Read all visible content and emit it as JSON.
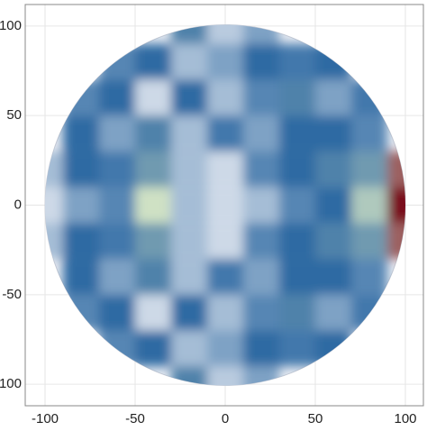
{
  "chart_data": {
    "type": "field",
    "x": [
      -100,
      -80,
      -60,
      -40,
      -20,
      0,
      20,
      40,
      60,
      80,
      100
    ],
    "y": [
      100,
      80,
      60,
      40,
      20,
      0,
      -20,
      -40,
      -60,
      -80,
      -100
    ],
    "z": [
      [
        null,
        null,
        null,
        null,
        0.55,
        0.15,
        0.3,
        null,
        null,
        null,
        null
      ],
      [
        null,
        null,
        0.4,
        0.5,
        0.2,
        0.3,
        0.5,
        0.45,
        0.5,
        null,
        null
      ],
      [
        null,
        0.4,
        0.5,
        0.1,
        0.5,
        0.2,
        0.4,
        0.55,
        0.3,
        0.45,
        null
      ],
      [
        null,
        0.5,
        0.3,
        0.55,
        0.2,
        0.45,
        0.3,
        0.5,
        0.5,
        0.4,
        null
      ],
      [
        0.2,
        0.5,
        0.45,
        0.6,
        0.2,
        0.1,
        0.4,
        0.5,
        0.55,
        0.6,
        0.9
      ],
      [
        0.1,
        0.3,
        0.4,
        0.75,
        0.2,
        0.1,
        0.2,
        0.4,
        0.5,
        0.7,
        1.0
      ],
      [
        0.2,
        0.5,
        0.45,
        0.6,
        0.2,
        0.1,
        0.4,
        0.5,
        0.55,
        0.6,
        0.9
      ],
      [
        null,
        0.5,
        0.3,
        0.55,
        0.2,
        0.45,
        0.3,
        0.5,
        0.5,
        0.4,
        null
      ],
      [
        null,
        0.4,
        0.5,
        0.1,
        0.5,
        0.2,
        0.4,
        0.55,
        0.3,
        0.45,
        null
      ],
      [
        null,
        null,
        0.4,
        0.5,
        0.2,
        0.3,
        0.5,
        0.45,
        0.5,
        null,
        null
      ],
      [
        null,
        null,
        null,
        null,
        0.55,
        0.15,
        0.3,
        null,
        null,
        null,
        null
      ]
    ],
    "colorscale": [
      [
        0,
        "#f4f5f8"
      ],
      [
        0.5,
        "#2f6aa3"
      ],
      [
        0.75,
        "#cfe1c4"
      ],
      [
        1,
        "#7a0c1e"
      ]
    ],
    "xlim": [
      -111,
      110
    ],
    "ylim": [
      -112,
      112
    ],
    "xticks": [
      -100,
      -50,
      0,
      50,
      100
    ],
    "yticks": [
      -100,
      -50,
      0,
      50,
      100
    ],
    "grid": true
  }
}
